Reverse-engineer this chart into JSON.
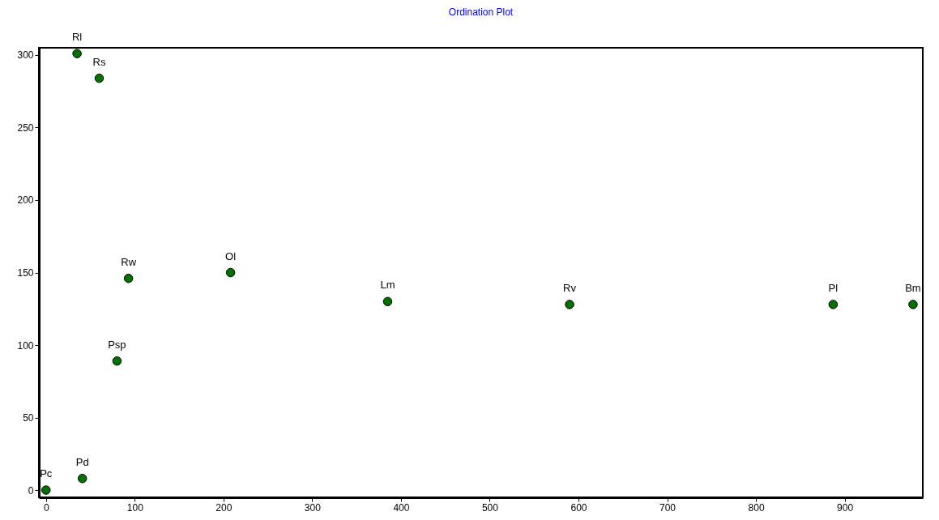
{
  "chart_data": {
    "type": "scatter",
    "title": "Ordination Plot",
    "x": [
      0,
      41,
      35,
      60,
      93,
      80,
      208,
      385,
      590,
      887,
      977
    ],
    "series": [
      {
        "color": "#007000",
        "values": [
          0,
          8,
          301,
          284,
          146,
          89,
          150,
          130,
          128,
          128,
          128
        ]
      }
    ],
    "annotations": [
      {
        "text": "Pc",
        "x": 0,
        "y": 0
      },
      {
        "text": "Pd",
        "x": 41,
        "y": 8
      },
      {
        "text": "Rl",
        "x": 35,
        "y": 301
      },
      {
        "text": "Rs",
        "x": 60,
        "y": 284
      },
      {
        "text": "Rw",
        "x": 93,
        "y": 146
      },
      {
        "text": "Psp",
        "x": 80,
        "y": 89
      },
      {
        "text": "Ol",
        "x": 208,
        "y": 150
      },
      {
        "text": "Lm",
        "x": 385,
        "y": 130
      },
      {
        "text": "Rv",
        "x": 590,
        "y": 128
      },
      {
        "text": "Pl",
        "x": 887,
        "y": 128
      },
      {
        "text": "Bm",
        "x": 977,
        "y": 128
      }
    ],
    "xlim": [
      -8,
      988
    ],
    "ylim": [
      -5,
      305
    ],
    "xticks": [
      0,
      100,
      200,
      300,
      400,
      500,
      600,
      700,
      800,
      900
    ],
    "yticks": [
      0,
      50,
      100,
      150,
      200,
      250,
      300
    ],
    "marker": "circle",
    "grid": false
  }
}
